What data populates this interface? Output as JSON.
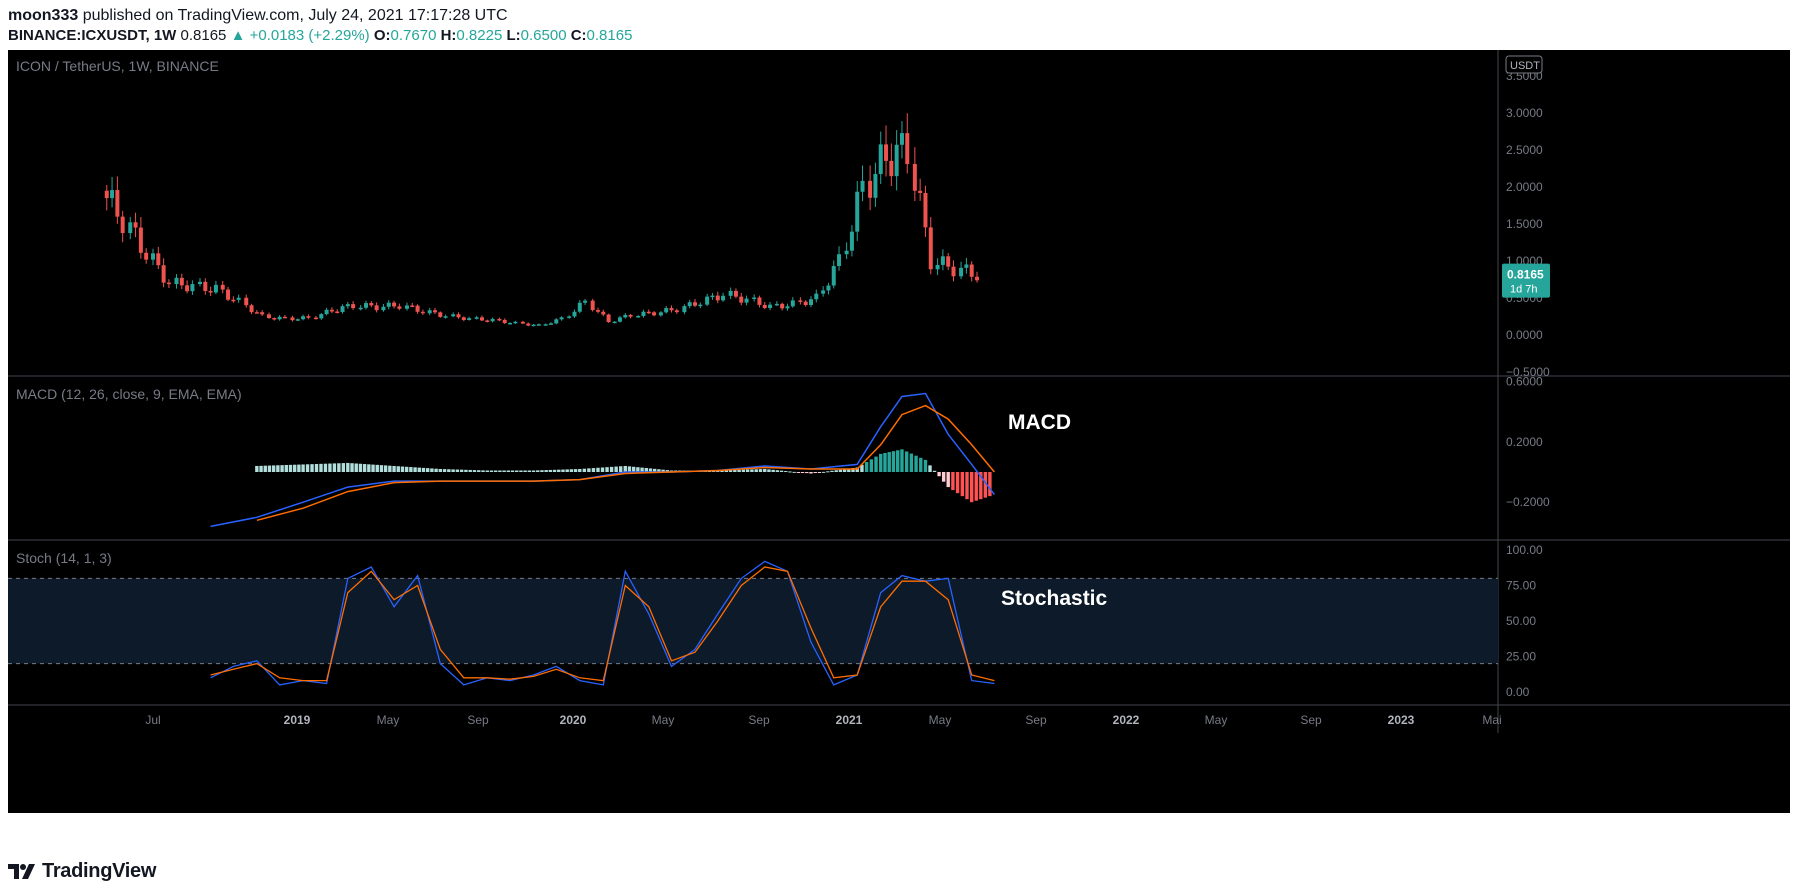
{
  "header": {
    "author": "moon333",
    "published": "published on TradingView.com, July 24, 2021 17:17:28 UTC",
    "symbol": "BINANCE:ICXUSDT, 1W",
    "last": "0.8165",
    "change": "▲ +0.0183 (+2.29%)",
    "o_label": "O:",
    "o": "0.7670",
    "h_label": "H:",
    "h": "0.8225",
    "l_label": "L:",
    "l": "0.6500",
    "c_label": "C:",
    "c": "0.8165"
  },
  "footer": {
    "brand": "TradingView"
  },
  "colors": {
    "up": "#26a69a",
    "down": "#ef5350",
    "macd": "#2962ff",
    "signal": "#ff6d00",
    "background": "#000000"
  },
  "chart_data": [
    {
      "type": "candlestick",
      "title": "ICON / TetherUS, 1W, BINANCE",
      "unit_badge": "USDT",
      "last_price_label": "0.8165",
      "countdown_label": "1d 7h",
      "x_tick_labels": [
        "Jul",
        "2019",
        "May",
        "Sep",
        "2020",
        "May",
        "Sep",
        "2021",
        "May",
        "Sep",
        "2022",
        "May",
        "Sep",
        "2023",
        "Mai"
      ],
      "y_tick_labels": [
        "3.5000",
        "3.0000",
        "2.5000",
        "2.0000",
        "1.5000",
        "1.0000",
        "0.5000",
        "0.0000",
        "−0.5000"
      ],
      "ylim": [
        -0.5,
        3.5
      ],
      "series": [
        {
          "date": "2018-05",
          "close": 1.95
        },
        {
          "date": "2018-06",
          "close": 1.55
        },
        {
          "date": "2018-07",
          "close": 1.1
        },
        {
          "date": "2018-08",
          "close": 0.7
        },
        {
          "date": "2018-09",
          "close": 0.66
        },
        {
          "date": "2018-10",
          "close": 0.62
        },
        {
          "date": "2018-11",
          "close": 0.45
        },
        {
          "date": "2018-12",
          "close": 0.25
        },
        {
          "date": "2019-01",
          "close": 0.22
        },
        {
          "date": "2019-02",
          "close": 0.23
        },
        {
          "date": "2019-03",
          "close": 0.33
        },
        {
          "date": "2019-04",
          "close": 0.4
        },
        {
          "date": "2019-05",
          "close": 0.38
        },
        {
          "date": "2019-06",
          "close": 0.4
        },
        {
          "date": "2019-07",
          "close": 0.32
        },
        {
          "date": "2019-08",
          "close": 0.26
        },
        {
          "date": "2019-09",
          "close": 0.22
        },
        {
          "date": "2019-10",
          "close": 0.2
        },
        {
          "date": "2019-11",
          "close": 0.16
        },
        {
          "date": "2019-12",
          "close": 0.13
        },
        {
          "date": "2020-01",
          "close": 0.22
        },
        {
          "date": "2020-02",
          "close": 0.45
        },
        {
          "date": "2020-03",
          "close": 0.18
        },
        {
          "date": "2020-04",
          "close": 0.27
        },
        {
          "date": "2020-05",
          "close": 0.3
        },
        {
          "date": "2020-06",
          "close": 0.35
        },
        {
          "date": "2020-07",
          "close": 0.45
        },
        {
          "date": "2020-08",
          "close": 0.55
        },
        {
          "date": "2020-09",
          "close": 0.48
        },
        {
          "date": "2020-10",
          "close": 0.38
        },
        {
          "date": "2020-11",
          "close": 0.42
        },
        {
          "date": "2020-12",
          "close": 0.5
        },
        {
          "date": "2021-01",
          "close": 1.0
        },
        {
          "date": "2021-02",
          "close": 2.0
        },
        {
          "date": "2021-03",
          "close": 2.4
        },
        {
          "date": "2021-04",
          "close": 2.5
        },
        {
          "date": "2021-05",
          "close": 1.0
        },
        {
          "date": "2021-06",
          "close": 0.9
        },
        {
          "date": "2021-07",
          "close": 0.8165
        }
      ]
    },
    {
      "type": "line",
      "title": "MACD (12, 26, close, 9, EMA, EMA)",
      "annotation": "MACD",
      "y_tick_labels": [
        "0.6000",
        "0.2000",
        "−0.2000"
      ],
      "ylim": [
        -0.36,
        0.6
      ],
      "series": [
        {
          "name": "MACD",
          "x": [
            "2018-09",
            "2018-11",
            "2019-01",
            "2019-03",
            "2019-05",
            "2019-07",
            "2019-09",
            "2019-11",
            "2020-01",
            "2020-03",
            "2020-05",
            "2020-07",
            "2020-09",
            "2020-11",
            "2021-01",
            "2021-02",
            "2021-03",
            "2021-04",
            "2021-05",
            "2021-06",
            "2021-07"
          ],
          "values": [
            -0.36,
            -0.3,
            -0.2,
            -0.1,
            -0.06,
            -0.06,
            -0.06,
            -0.06,
            -0.05,
            0.0,
            0.0,
            0.01,
            0.04,
            0.02,
            0.05,
            0.3,
            0.5,
            0.52,
            0.25,
            0.05,
            -0.15
          ]
        },
        {
          "name": "Signal",
          "x": [
            "2018-11",
            "2019-01",
            "2019-03",
            "2019-05",
            "2019-07",
            "2019-09",
            "2019-11",
            "2020-01",
            "2020-03",
            "2020-05",
            "2020-07",
            "2020-09",
            "2020-11",
            "2021-01",
            "2021-02",
            "2021-03",
            "2021-04",
            "2021-05",
            "2021-06",
            "2021-07"
          ],
          "values": [
            -0.32,
            -0.24,
            -0.13,
            -0.07,
            -0.06,
            -0.06,
            -0.06,
            -0.05,
            -0.01,
            0.0,
            0.01,
            0.03,
            0.02,
            0.02,
            0.18,
            0.38,
            0.44,
            0.35,
            0.18,
            0.0
          ]
        },
        {
          "name": "Histogram",
          "x": [
            "2018-11",
            "2019-01",
            "2019-03",
            "2019-05",
            "2019-07",
            "2019-09",
            "2019-11",
            "2020-01",
            "2020-03",
            "2020-05",
            "2020-07",
            "2020-09",
            "2020-11",
            "2021-01",
            "2021-02",
            "2021-03",
            "2021-04",
            "2021-05",
            "2021-06",
            "2021-07"
          ],
          "values": [
            0.04,
            0.05,
            0.06,
            0.04,
            0.02,
            0.01,
            0.01,
            0.02,
            0.04,
            0.01,
            0.01,
            0.02,
            -0.01,
            0.03,
            0.12,
            0.15,
            0.08,
            -0.1,
            -0.2,
            -0.15
          ]
        }
      ]
    },
    {
      "type": "line",
      "title": "Stoch (14, 1, 3)",
      "annotation": "Stochastic",
      "y_tick_labels": [
        "100.00",
        "75.00",
        "50.00",
        "25.00",
        "0.00"
      ],
      "ylim": [
        0,
        100
      ],
      "bands": [
        20,
        80
      ],
      "series": [
        {
          "name": "%K",
          "x": [
            "2018-09",
            "2018-10",
            "2018-11",
            "2018-12",
            "2019-01",
            "2019-02",
            "2019-03",
            "2019-04",
            "2019-05",
            "2019-06",
            "2019-07",
            "2019-08",
            "2019-09",
            "2019-10",
            "2019-11",
            "2019-12",
            "2020-01",
            "2020-02",
            "2020-03",
            "2020-04",
            "2020-05",
            "2020-06",
            "2020-07",
            "2020-08",
            "2020-09",
            "2020-10",
            "2020-11",
            "2020-12",
            "2021-01",
            "2021-02",
            "2021-03",
            "2021-04",
            "2021-05",
            "2021-06",
            "2021-07"
          ],
          "values": [
            10,
            18,
            22,
            5,
            8,
            6,
            80,
            88,
            60,
            82,
            20,
            5,
            10,
            8,
            12,
            18,
            8,
            5,
            85,
            55,
            18,
            30,
            55,
            80,
            92,
            85,
            35,
            5,
            12,
            70,
            82,
            78,
            80,
            8,
            6
          ]
        },
        {
          "name": "%D",
          "x": [
            "2018-09",
            "2018-10",
            "2018-11",
            "2018-12",
            "2019-01",
            "2019-02",
            "2019-03",
            "2019-04",
            "2019-05",
            "2019-06",
            "2019-07",
            "2019-08",
            "2019-09",
            "2019-10",
            "2019-11",
            "2019-12",
            "2020-01",
            "2020-02",
            "2020-03",
            "2020-04",
            "2020-05",
            "2020-06",
            "2020-07",
            "2020-08",
            "2020-09",
            "2020-10",
            "2020-11",
            "2020-12",
            "2021-01",
            "2021-02",
            "2021-03",
            "2021-04",
            "2021-05",
            "2021-06",
            "2021-07"
          ],
          "values": [
            12,
            16,
            20,
            10,
            8,
            8,
            70,
            85,
            65,
            75,
            30,
            10,
            10,
            9,
            11,
            16,
            10,
            8,
            75,
            60,
            22,
            28,
            50,
            75,
            88,
            85,
            45,
            10,
            12,
            60,
            78,
            78,
            65,
            12,
            8
          ]
        }
      ]
    }
  ]
}
